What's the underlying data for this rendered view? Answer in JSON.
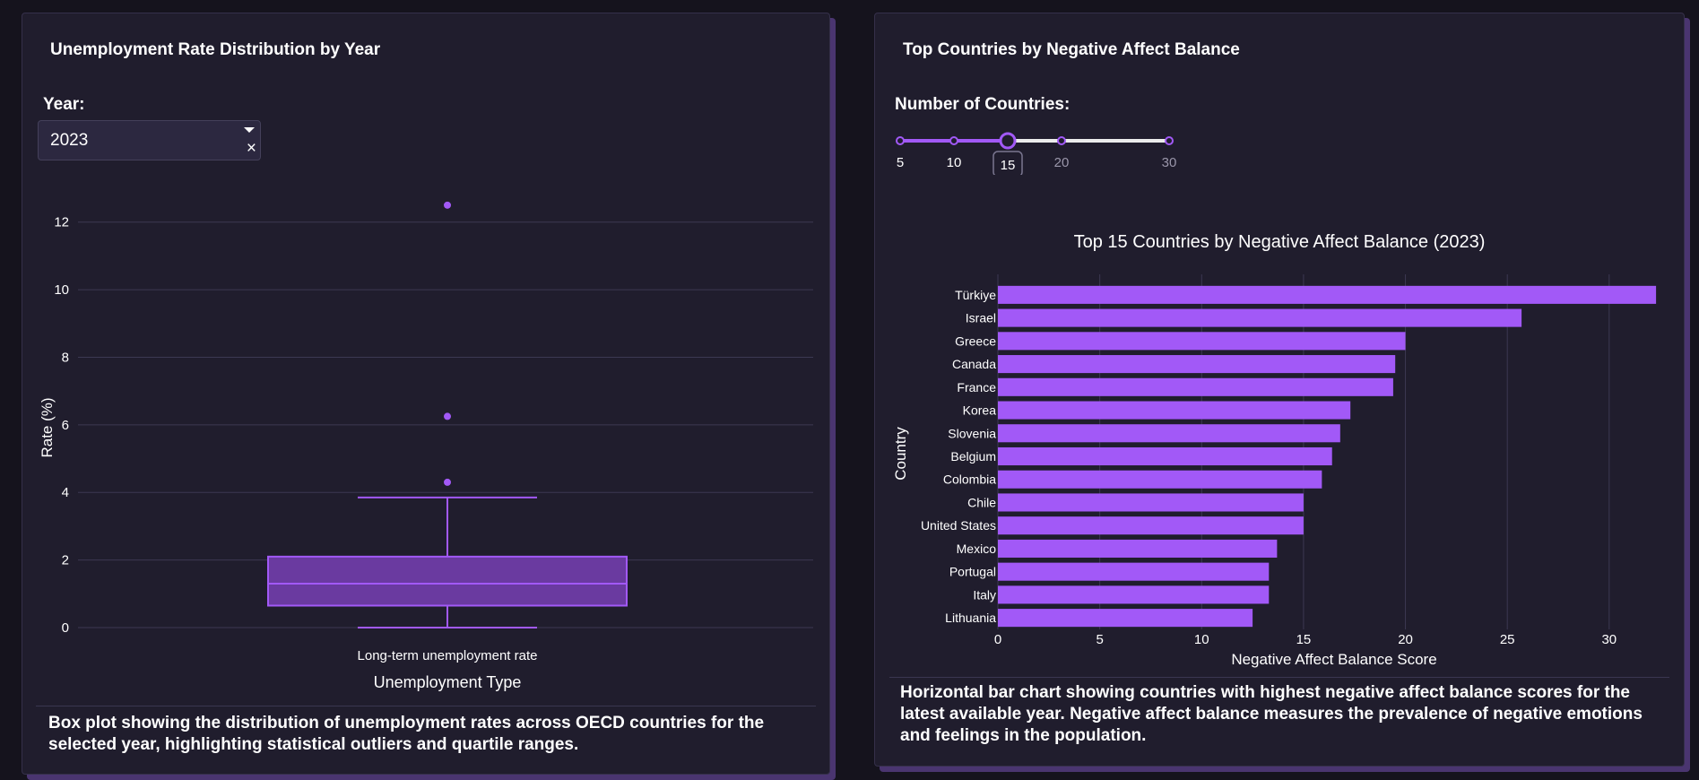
{
  "left_panel": {
    "title": "Unemployment Rate Distribution by Year",
    "year_label": "Year:",
    "year_value": "2023",
    "clear_icon_glyph": "×",
    "caption": "Box plot showing the distribution of unemployment rates across OECD countries for the selected year, highlighting statistical outliers and quartile ranges."
  },
  "right_panel": {
    "title": "Top Countries by Negative Affect Balance",
    "slider_label": "Number of Countries:",
    "slider_marks": [
      "5",
      "10",
      "15",
      "20",
      "30"
    ],
    "slider_value": "15",
    "caption": "Horizontal bar chart showing countries with highest negative affect balance scores for the latest available year. Negative affect balance measures the prevalence of negative emotions and feelings in the population."
  },
  "colors": {
    "accent": "#a259f7",
    "box_fill": "#6a3aa0",
    "card_bg": "#201d2d",
    "page_bg": "#15131d"
  },
  "chart_data": [
    {
      "type": "box",
      "title": "",
      "xlabel": "Unemployment Type",
      "ylabel": "Rate (%)",
      "category": "Long-term unemployment rate",
      "ylim": [
        0,
        13
      ],
      "yticks": [
        0,
        2,
        4,
        6,
        8,
        10,
        12
      ],
      "stats": {
        "min": 0.0,
        "q1": 0.65,
        "median": 1.3,
        "q3": 2.1,
        "max": 3.85
      },
      "outliers": [
        4.3,
        6.25,
        12.5
      ],
      "grid": true
    },
    {
      "type": "bar",
      "orientation": "horizontal",
      "title": "Top 15 Countries by Negative Affect Balance (2023)",
      "xlabel": "Negative Affect Balance Score",
      "ylabel": "Country",
      "xlim": [
        0,
        33
      ],
      "xticks": [
        0,
        5,
        10,
        15,
        20,
        25,
        30
      ],
      "categories": [
        "Türkiye",
        "Israel",
        "Greece",
        "Canada",
        "France",
        "Korea",
        "Slovenia",
        "Belgium",
        "Colombia",
        "Chile",
        "United States",
        "Mexico",
        "Portugal",
        "Italy",
        "Lithuania"
      ],
      "values": [
        32.3,
        25.7,
        20.0,
        19.5,
        19.4,
        17.3,
        16.8,
        16.4,
        15.9,
        15.0,
        15.0,
        13.7,
        13.3,
        13.3,
        12.5
      ],
      "grid": true
    }
  ]
}
